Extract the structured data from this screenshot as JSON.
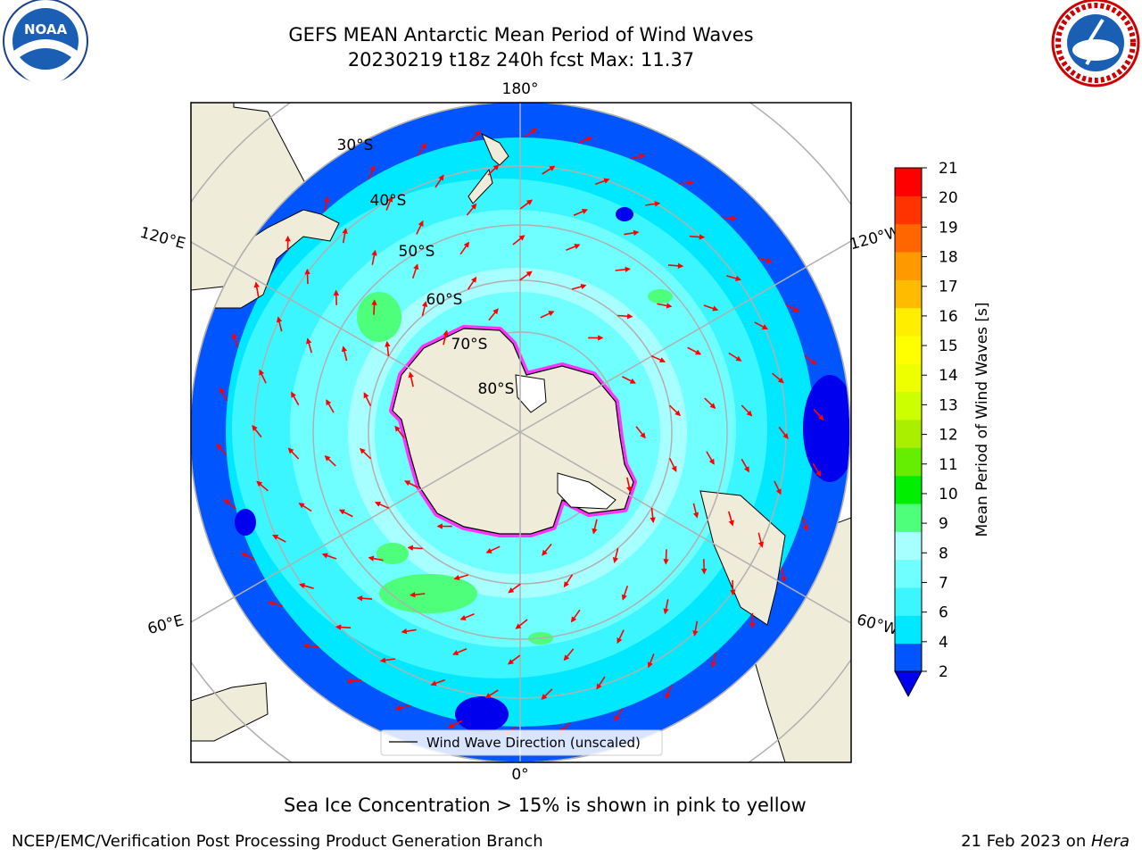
{
  "title_line1": "GEFS MEAN Antarctic Mean Period of Wind Waves",
  "title_line2": "20230219 t18z 240h fcst   Max: 11.37",
  "longitude_labels": {
    "top": "180°",
    "bottom": "0°",
    "left_upper": "120°E",
    "left_lower": "60°E",
    "right_upper": "120°W",
    "right_lower": "60°W"
  },
  "latitude_labels": [
    "30°S",
    "40°S",
    "50°S",
    "60°S",
    "70°S",
    "80°S"
  ],
  "legend_label": "Wind Wave Direction (unscaled)",
  "colorbar": {
    "label": "Mean Period of Wind Waves [s]",
    "ticks": [
      "2",
      "4",
      "6",
      "7",
      "8",
      "9",
      "10",
      "11",
      "12",
      "13",
      "14",
      "15",
      "16",
      "17",
      "18",
      "19",
      "20",
      "21"
    ],
    "colors": [
      "#0055ff",
      "#00e8ff",
      "#3cf6ff",
      "#70ffff",
      "#a8ffff",
      "#4dff7a",
      "#00ee00",
      "#66ee00",
      "#aaee00",
      "#ccff00",
      "#eeff00",
      "#ffff00",
      "#ffee00",
      "#ffbb00",
      "#ff9900",
      "#ff6600",
      "#ff3300",
      "#ff0000"
    ],
    "under_color": "#0000ee"
  },
  "sea_ice_note": "Sea Ice Concentration > 15% is shown in pink to yellow",
  "footer_left": "NCEP/EMC/Verification Post Processing Product Generation Branch",
  "footer_right_date": "21 Feb 2023 on ",
  "footer_right_machine": "Hera",
  "logos": {
    "left": "NOAA",
    "right": "NATIONAL WEATHER SERVICE"
  },
  "colors": {
    "land": "#efecd9",
    "ocean_deep": "#0055ff",
    "ocean_mid": "#00e8ff",
    "ocean_light": "#70ffff",
    "arrow": "#ff0000",
    "sea_ice": "#ff33ff"
  }
}
